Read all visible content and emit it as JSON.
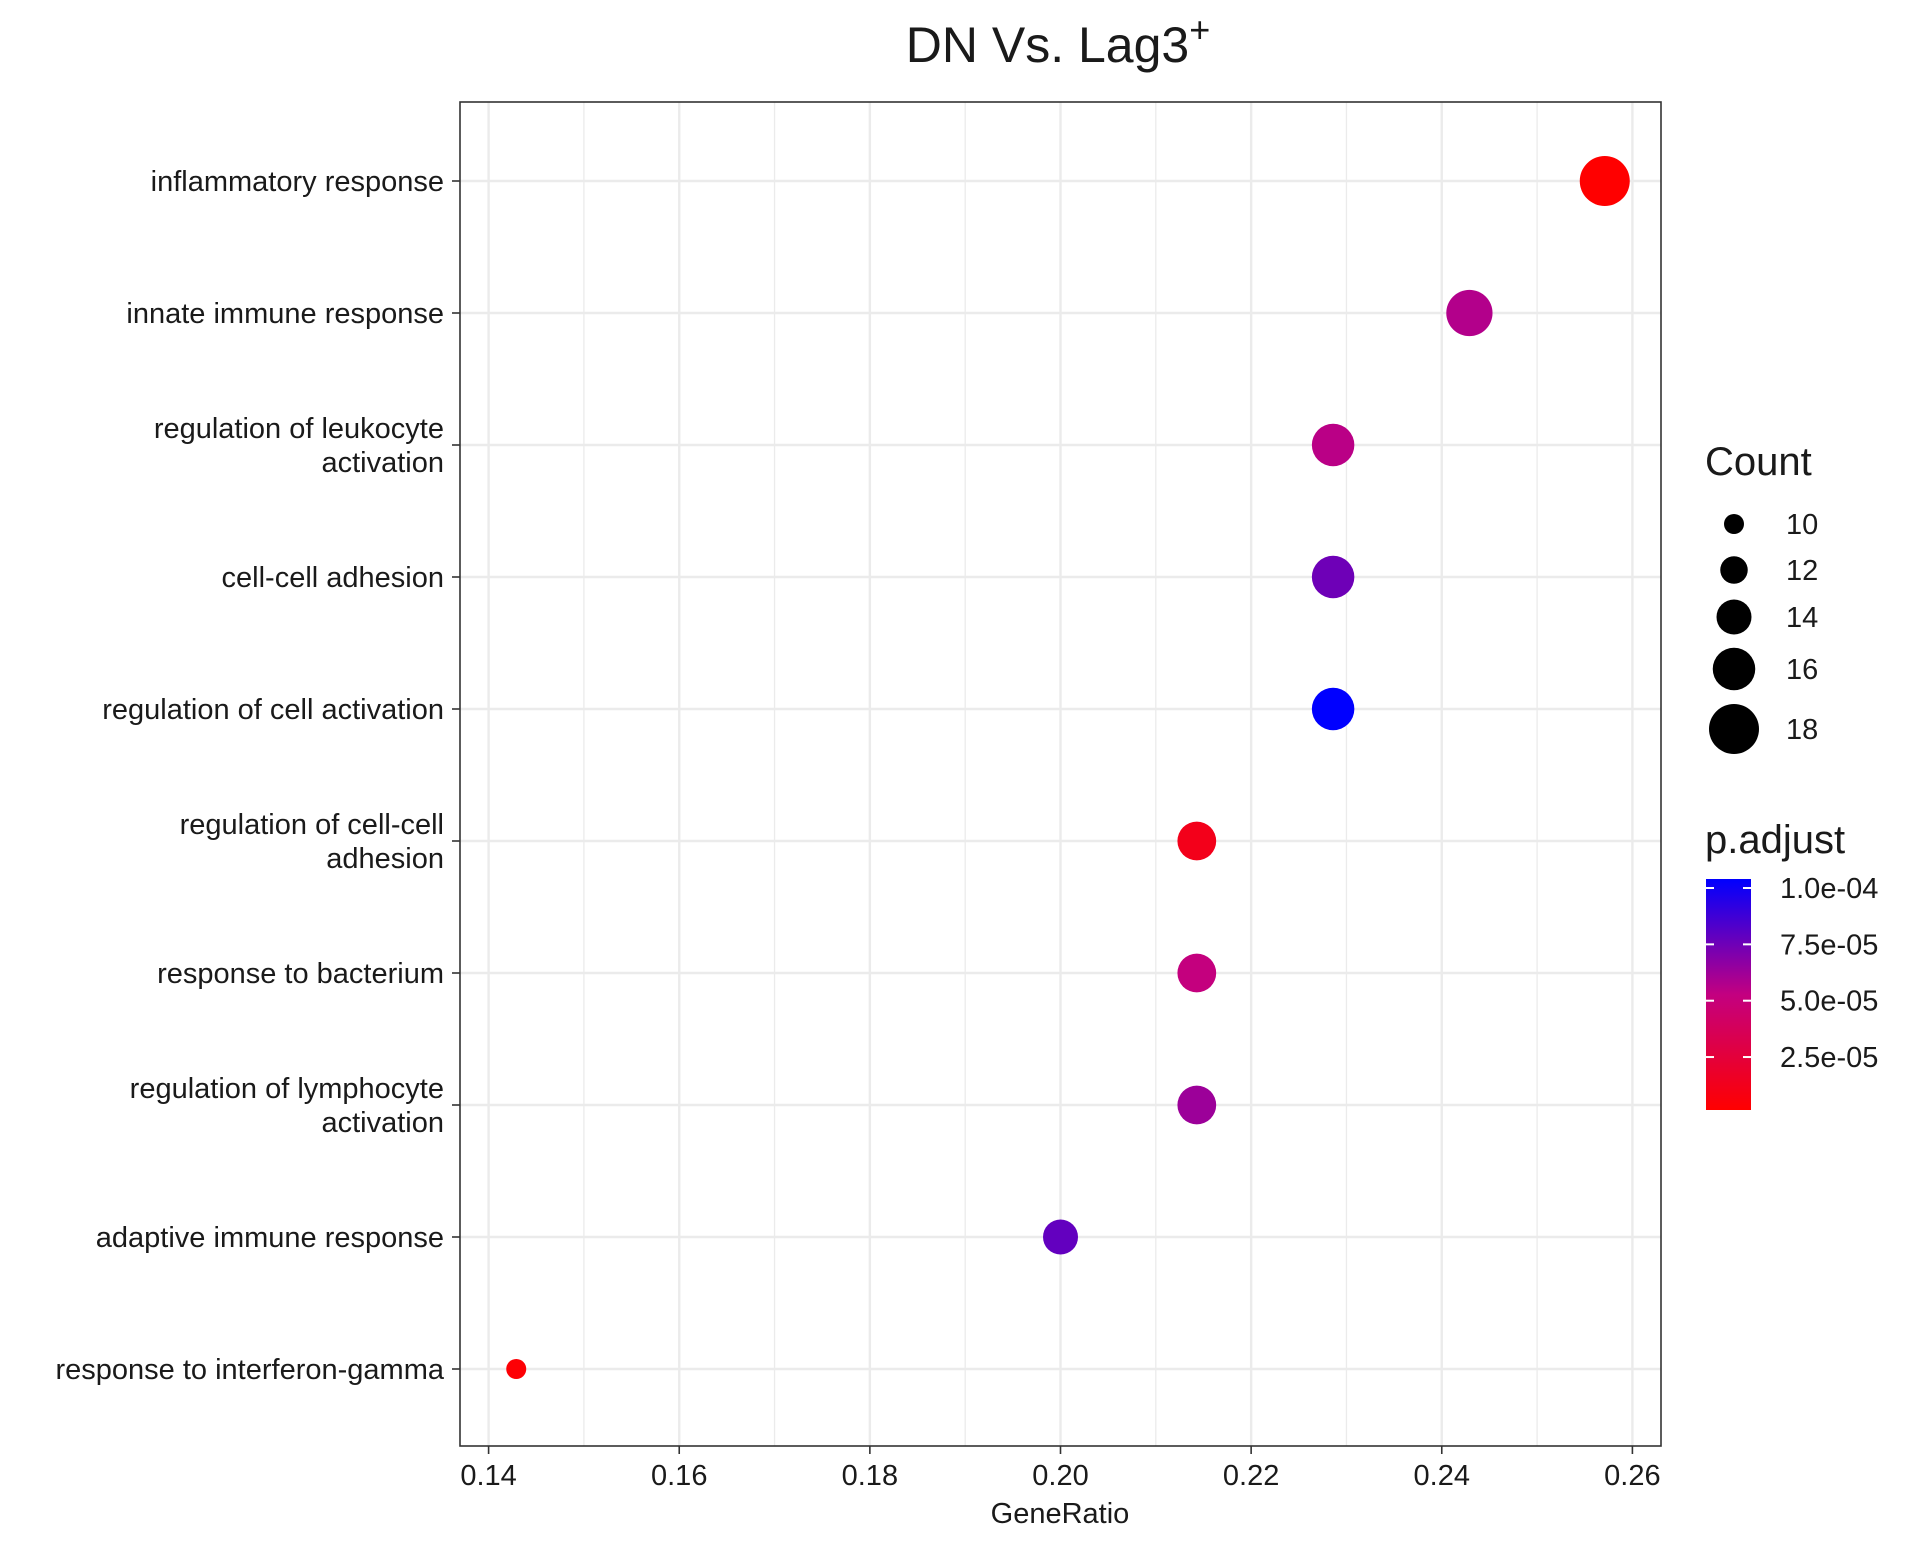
{
  "chart_data": {
    "type": "scatter",
    "title": "DN Vs. Lag3",
    "title_superscript": "+",
    "xlabel": "GeneRatio",
    "ylabel": "",
    "xlim": [
      0.137,
      0.263
    ],
    "x_ticks": [
      0.14,
      0.16,
      0.18,
      0.2,
      0.22,
      0.24,
      0.26
    ],
    "x_tick_labels": [
      "0.14",
      "0.16",
      "0.18",
      "0.20",
      "0.22",
      "0.24",
      "0.26"
    ],
    "grid": true,
    "categories": [
      [
        "inflammatory response"
      ],
      [
        "innate immune response"
      ],
      [
        "regulation of leukocyte",
        "activation"
      ],
      [
        "cell-cell adhesion"
      ],
      [
        "regulation of cell activation"
      ],
      [
        "regulation of cell-cell",
        "adhesion"
      ],
      [
        "response to bacterium"
      ],
      [
        "regulation of lymphocyte",
        "activation"
      ],
      [
        "adaptive immune response"
      ],
      [
        "response to interferon-gamma"
      ]
    ],
    "points": [
      {
        "term": "inflammatory response",
        "gene_ratio": 0.2571,
        "count": 18,
        "p_adjust": 1.5e-06
      },
      {
        "term": "innate immune response",
        "gene_ratio": 0.2429,
        "count": 17,
        "p_adjust": 5.7e-05
      },
      {
        "term": "regulation of leukocyte activation",
        "gene_ratio": 0.2286,
        "count": 16,
        "p_adjust": 5.5e-05
      },
      {
        "term": "cell-cell adhesion",
        "gene_ratio": 0.2286,
        "count": 16,
        "p_adjust": 7.5e-05
      },
      {
        "term": "regulation of cell activation",
        "gene_ratio": 0.2286,
        "count": 16,
        "p_adjust": 0.000104
      },
      {
        "term": "regulation of cell-cell adhesion",
        "gene_ratio": 0.2143,
        "count": 15,
        "p_adjust": 1.2e-05
      },
      {
        "term": "response to bacterium",
        "gene_ratio": 0.2143,
        "count": 15,
        "p_adjust": 5.2e-05
      },
      {
        "term": "regulation of lymphocyte activation",
        "gene_ratio": 0.2143,
        "count": 15,
        "p_adjust": 6.3e-05
      },
      {
        "term": "adaptive immune response",
        "gene_ratio": 0.2,
        "count": 14,
        "p_adjust": 7.8e-05
      },
      {
        "term": "response to interferon-gamma",
        "gene_ratio": 0.1429,
        "count": 10,
        "p_adjust": 3.5e-06
      }
    ],
    "legend_size": {
      "title": "Count",
      "values": [
        10,
        12,
        14,
        16,
        18
      ],
      "labels": [
        "10",
        "12",
        "14",
        "16",
        "18"
      ]
    },
    "legend_color": {
      "title": "p.adjust",
      "range": [
        1.5e-06,
        0.000104
      ],
      "breaks": [
        0.0001,
        7.5e-05,
        5e-05,
        2.5e-05
      ],
      "labels": [
        "1.0e-04",
        "7.5e-05",
        "5.0e-05",
        "2.5e-05"
      ],
      "low_color": "#ff0000",
      "high_color": "#0000ff"
    },
    "legend_position": "right"
  },
  "colors": {
    "panel_border": "#333333",
    "grid_major": "#ebebeb",
    "grid_minor": "#f4f4f4",
    "text": "#1a1a1a",
    "point_black": "#000000"
  }
}
